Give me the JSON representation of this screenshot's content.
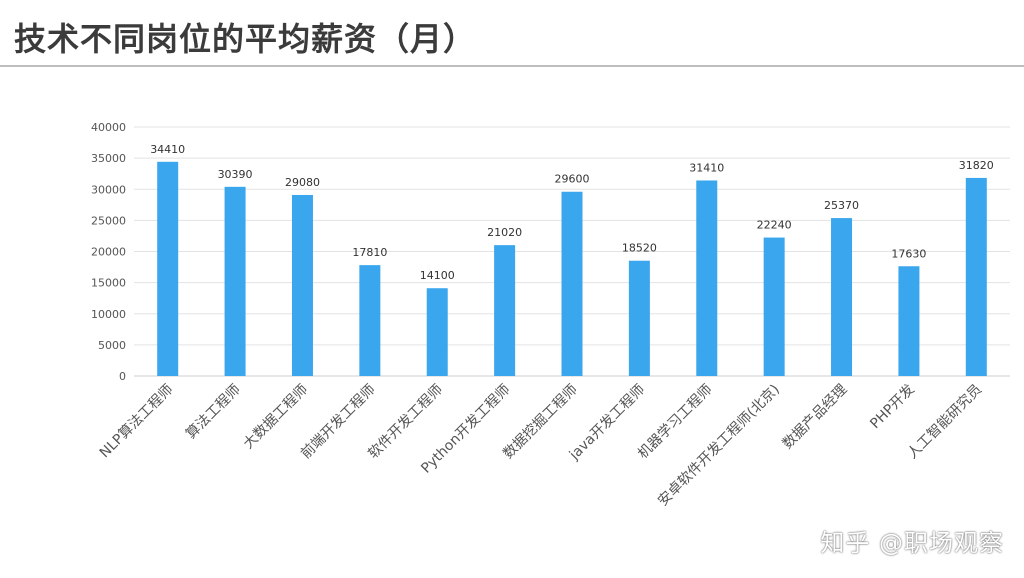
{
  "header": {
    "title": "技术不同岗位的平均薪资（月）"
  },
  "watermark": "知乎 @职场观察",
  "colors": {
    "bar": "#3aa6ee",
    "grid": "#e3e3e3",
    "axis_text": "#555555",
    "label_text": "#333333"
  },
  "chart_data": {
    "type": "bar",
    "title": "",
    "xlabel": "",
    "ylabel": "",
    "categories": [
      "NLP算法工程师",
      "算法工程师",
      "大数据工程师",
      "前端开发工程师",
      "软件开发工程师",
      "Python开发工程师",
      "数据挖掘工程师",
      "java开发工程师",
      "机器学习工程师",
      "安卓软件开发工程师(北京)",
      "数据产品经理",
      "PHP开发",
      "人工智能研究员"
    ],
    "values": [
      34410,
      30390,
      29080,
      17810,
      14100,
      21020,
      29600,
      18520,
      31410,
      22240,
      25370,
      17630,
      31820
    ],
    "ylim": [
      0,
      40000
    ],
    "yticks": [
      0,
      5000,
      10000,
      15000,
      20000,
      25000,
      30000,
      35000,
      40000
    ],
    "grid": true,
    "legend": "none",
    "data_labels": true
  }
}
